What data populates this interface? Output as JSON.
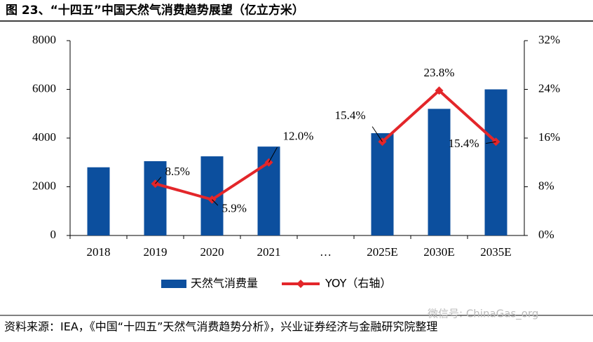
{
  "chart_data": {
    "type": "bar-line",
    "title": "图 23、“十四五”中国天然气消费趋势展望（亿立方米）",
    "source": "资料来源：IEA，《中国“十四五”天然气消费趋势分析》，兴业证券经济与金融研究院整理",
    "watermark": "微信号: ChinaGas_org",
    "categories": [
      "2018",
      "2019",
      "2020",
      "2021",
      "…",
      "2025E",
      "2030E",
      "2035E"
    ],
    "series": [
      {
        "name": "天然气消费量",
        "type": "bar",
        "color": "#0c4f9e",
        "values": [
          2800,
          3050,
          3250,
          3650,
          null,
          4200,
          5200,
          6000
        ]
      },
      {
        "name": "YOY（右轴）",
        "type": "line",
        "axis": "y2",
        "color": "#e3262a",
        "values": [
          null,
          8.5,
          5.9,
          12.0,
          null,
          15.4,
          23.8,
          15.4
        ],
        "value_labels": [
          null,
          "8.5%",
          "5.9%",
          "12.0%",
          null,
          "15.4%",
          "23.8%",
          "15.4%"
        ]
      }
    ],
    "ylim": [
      0,
      8000
    ],
    "yticks": [
      0,
      2000,
      4000,
      6000,
      8000
    ],
    "y2lim": [
      0,
      32
    ],
    "y2ticks": [
      {
        "value": 0,
        "label": "0%"
      },
      {
        "value": 8,
        "label": "8%"
      },
      {
        "value": 16,
        "label": "16%"
      },
      {
        "value": 24,
        "label": "24%"
      },
      {
        "value": 32,
        "label": "32%"
      }
    ]
  }
}
